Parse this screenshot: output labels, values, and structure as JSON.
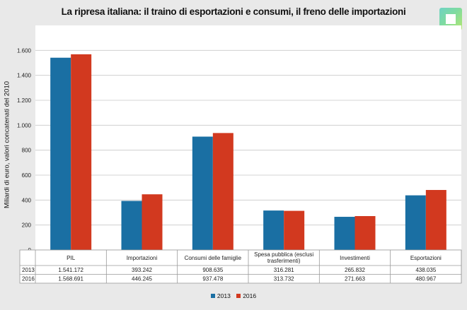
{
  "chart_data": {
    "type": "bar",
    "title": "La ripresa italiana: il traino di esportazioni e consumi, il freno delle importazioni",
    "ylabel": "Miliardi di euro, valori concatenati del 2010",
    "xlabel": "",
    "ylim": [
      0,
      1800
    ],
    "yticks": [
      0,
      200,
      400,
      600,
      800,
      1000,
      1200,
      1400,
      1600
    ],
    "ytick_labels": [
      "0",
      "200",
      "400",
      "600",
      "800",
      "1.000",
      "1.200",
      "1.400",
      "1.600"
    ],
    "grid": true,
    "legend_position": "bottom",
    "categories": [
      "PIL",
      "Importazioni",
      "Consumi delle famiglie",
      "Spesa pubblica (esclusi trasferimenti)",
      "Investimenti",
      "Esportazioni"
    ],
    "category_lines": [
      [
        "PIL"
      ],
      [
        "Importazioni"
      ],
      [
        "Consumi delle famiglie"
      ],
      [
        "Spesa pubblica (esclusi",
        "trasferimenti)"
      ],
      [
        "Investimenti"
      ],
      [
        "Esportazioni"
      ]
    ],
    "series": [
      {
        "name": "2013",
        "color": "#1a6fa3",
        "values": [
          1541.172,
          393.242,
          908.635,
          316.281,
          265.832,
          438.035
        ],
        "labels": [
          "1.541.172",
          "393.242",
          "908.635",
          "316.281",
          "265.832",
          "438.035"
        ]
      },
      {
        "name": "2016",
        "color": "#d2391f",
        "values": [
          1568.691,
          446.245,
          937.478,
          313.732,
          271.663,
          480.967
        ],
        "labels": [
          "1.568.691",
          "446.245",
          "937.478",
          "313.732",
          "271.663",
          "480.967"
        ]
      }
    ]
  }
}
